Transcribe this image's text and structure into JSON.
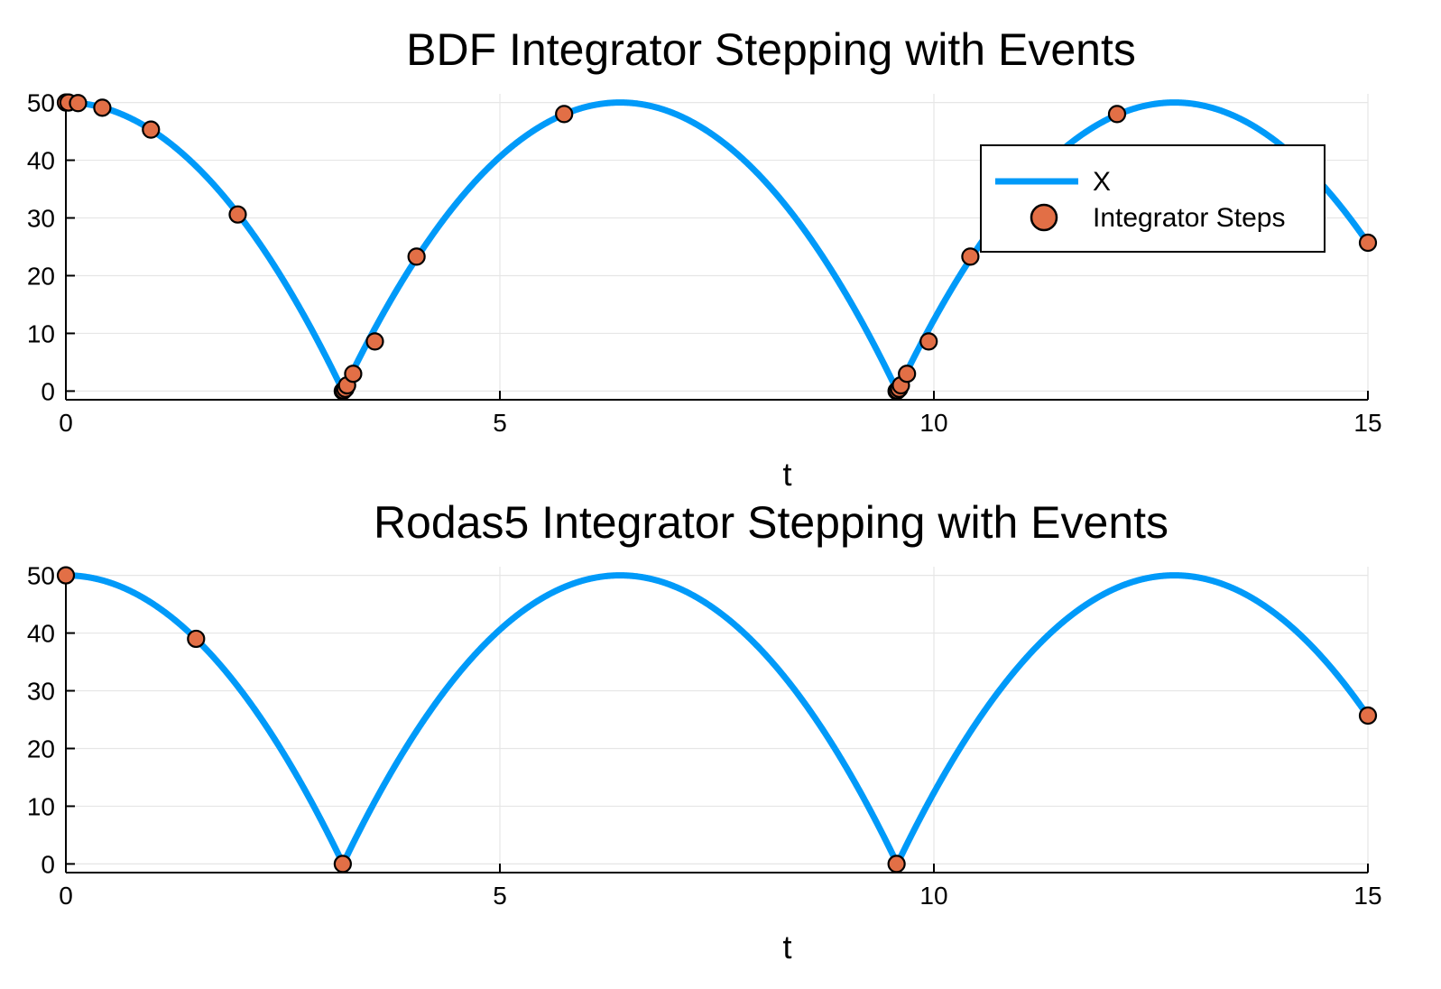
{
  "chart_data": [
    {
      "type": "line",
      "title": "BDF Integrator Stepping with Events",
      "xlabel": "t",
      "ylabel": "",
      "xlim": [
        0,
        15
      ],
      "ylim": [
        -1.5,
        51.5
      ],
      "xticks": [
        0,
        5,
        10,
        15
      ],
      "yticks": [
        0,
        10,
        20,
        30,
        40,
        50
      ],
      "grid": true,
      "legend": {
        "placement": "top-right",
        "entries": [
          "X",
          "Integrator Steps"
        ]
      },
      "colors": {
        "line": "#009af9",
        "marker": "#e26f46",
        "marker_edge": "#000000"
      },
      "series": [
        {
          "name": "X",
          "kind": "line",
          "model": {
            "h0": 50,
            "g": 9.81,
            "bounce_restitution": 1.0
          }
        },
        {
          "name": "Integrator Steps",
          "kind": "scatter",
          "x": [
            0.0,
            0.03,
            0.14,
            0.42,
            0.98,
            1.98,
            3.19,
            3.2,
            3.22,
            3.24,
            3.31,
            3.56,
            4.04,
            5.74,
            9.57,
            9.58,
            9.6,
            9.62,
            9.69,
            9.94,
            10.42,
            12.11,
            15.0
          ],
          "y": [
            50.0,
            50.0,
            49.9,
            49.1,
            45.3,
            30.6,
            0.0,
            0.1,
            0.4,
            1.0,
            3.0,
            8.6,
            23.3,
            48.0,
            0.0,
            0.1,
            0.4,
            1.0,
            3.0,
            8.6,
            23.3,
            48.0,
            25.7
          ]
        }
      ]
    },
    {
      "type": "line",
      "title": "Rodas5 Integrator Stepping with Events",
      "xlabel": "t",
      "ylabel": "",
      "xlim": [
        0,
        15
      ],
      "ylim": [
        -1.5,
        51.5
      ],
      "xticks": [
        0,
        5,
        10,
        15
      ],
      "yticks": [
        0,
        10,
        20,
        30,
        40,
        50
      ],
      "grid": true,
      "legend": null,
      "colors": {
        "line": "#009af9",
        "marker": "#e26f46",
        "marker_edge": "#000000"
      },
      "series": [
        {
          "name": "X",
          "kind": "line",
          "model": {
            "h0": 50,
            "g": 9.81,
            "bounce_restitution": 1.0
          }
        },
        {
          "name": "Integrator Steps",
          "kind": "scatter",
          "x": [
            0.0,
            1.5,
            3.19,
            9.57,
            15.0
          ],
          "y": [
            50.0,
            39.0,
            0.0,
            0.0,
            25.7
          ]
        }
      ]
    }
  ]
}
